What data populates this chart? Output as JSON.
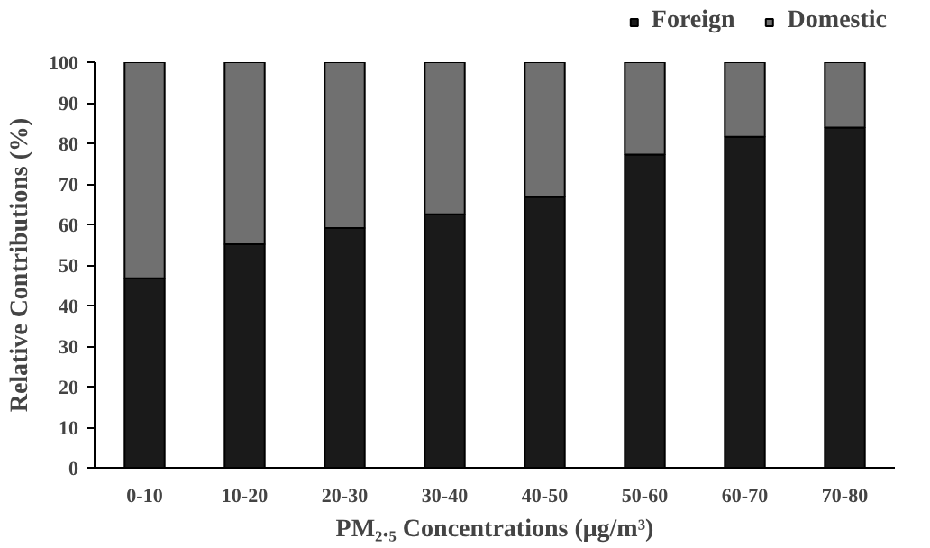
{
  "chart_data": {
    "type": "bar",
    "stacked": true,
    "categories": [
      "0-10",
      "10-20",
      "20-30",
      "30-40",
      "40-50",
      "50-60",
      "60-70",
      "70-80"
    ],
    "series": [
      {
        "name": "Foreign",
        "color": "#1a1a1a",
        "values": [
          46.7,
          55.1,
          59.1,
          62.5,
          66.8,
          77.2,
          81.6,
          83.9
        ]
      },
      {
        "name": "Domestic",
        "color": "#707070",
        "values": [
          53.3,
          44.9,
          40.9,
          37.5,
          33.2,
          22.8,
          18.4,
          16.1
        ]
      }
    ],
    "xlabel": "PM₂.₅ Concentrations (μg/m³)",
    "ylabel": "Relative Contributions (%)",
    "ylim": [
      0,
      100
    ],
    "yticks": [
      0,
      10,
      20,
      30,
      40,
      50,
      60,
      70,
      80,
      90,
      100
    ],
    "grid": false,
    "legend": "top right"
  }
}
